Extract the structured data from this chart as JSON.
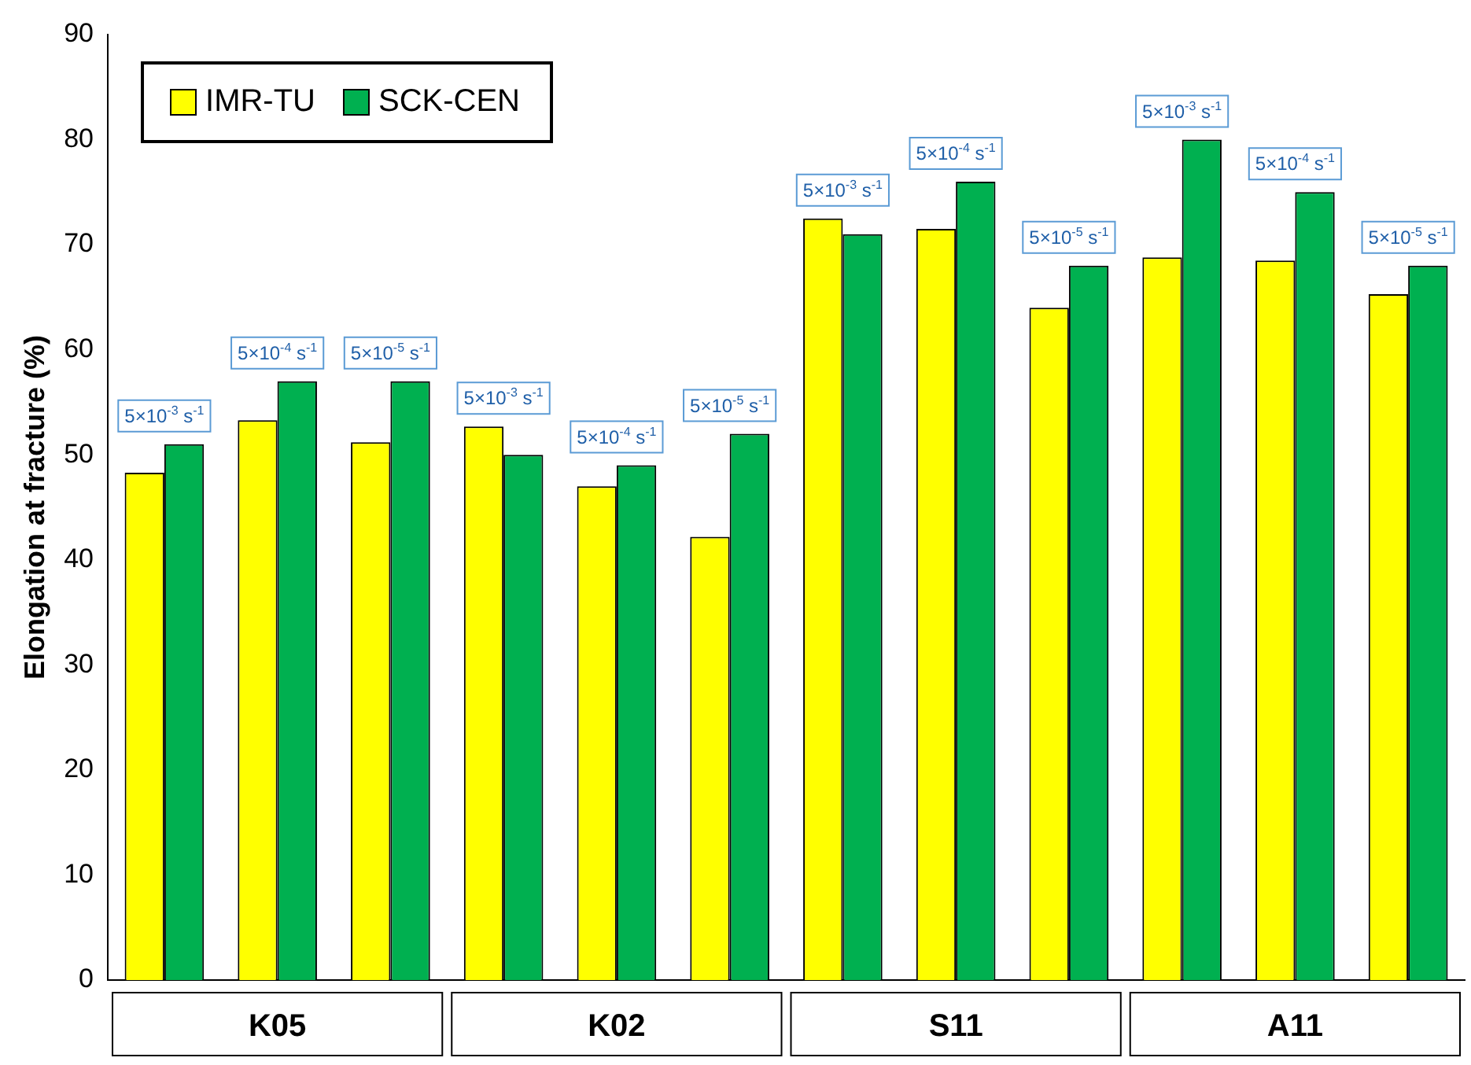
{
  "chart_data": {
    "type": "bar",
    "ylabel": "Elongation at fracture (%)",
    "categories": [
      null,
      "K05",
      null,
      null,
      "K02",
      null,
      null,
      "S11",
      null,
      null,
      "A11",
      null
    ],
    "series": [
      {
        "name": "IMR-TU",
        "color": "#ffff00",
        "values": [
          48.3,
          53.3,
          51.2,
          52.7,
          47,
          42.2,
          72.5,
          71.5,
          64,
          68.8,
          68.5,
          65.3
        ]
      },
      {
        "name": "SCK-CEN",
        "color": "#00b050",
        "values": [
          51,
          57,
          57,
          50,
          49,
          52,
          71,
          76,
          68,
          80,
          75,
          68
        ]
      }
    ],
    "ylim": [
      0,
      90
    ],
    "yticks": [
      0,
      10,
      20,
      30,
      40,
      50,
      60,
      70,
      80,
      90
    ],
    "grid": false,
    "legend": "top left",
    "annotations": [
      "5×10$^{-3}$ s$^{-1}$",
      "5×10$^{-4}$ s$^{-1}$",
      "5×10$^{-5}$ s$^{-1}$",
      "5×10$^{-3}$ s$^{-1}$",
      "5×10$^{-4}$ s$^{-1}$",
      "5×10$^{-5}$ s$^{-1}$",
      "5×10$^{-3}$ s$^{-1}$",
      "5×10$^{-4}$ s$^{-1}$",
      "5×10$^{-5}$ s$^{-1}$",
      "5×10$^{-3}$ s$^{-1}$",
      "5×10$^{-4}$ s$^{-1}$",
      "5×10$^{-5}$ s$^{-1}$"
    ]
  }
}
